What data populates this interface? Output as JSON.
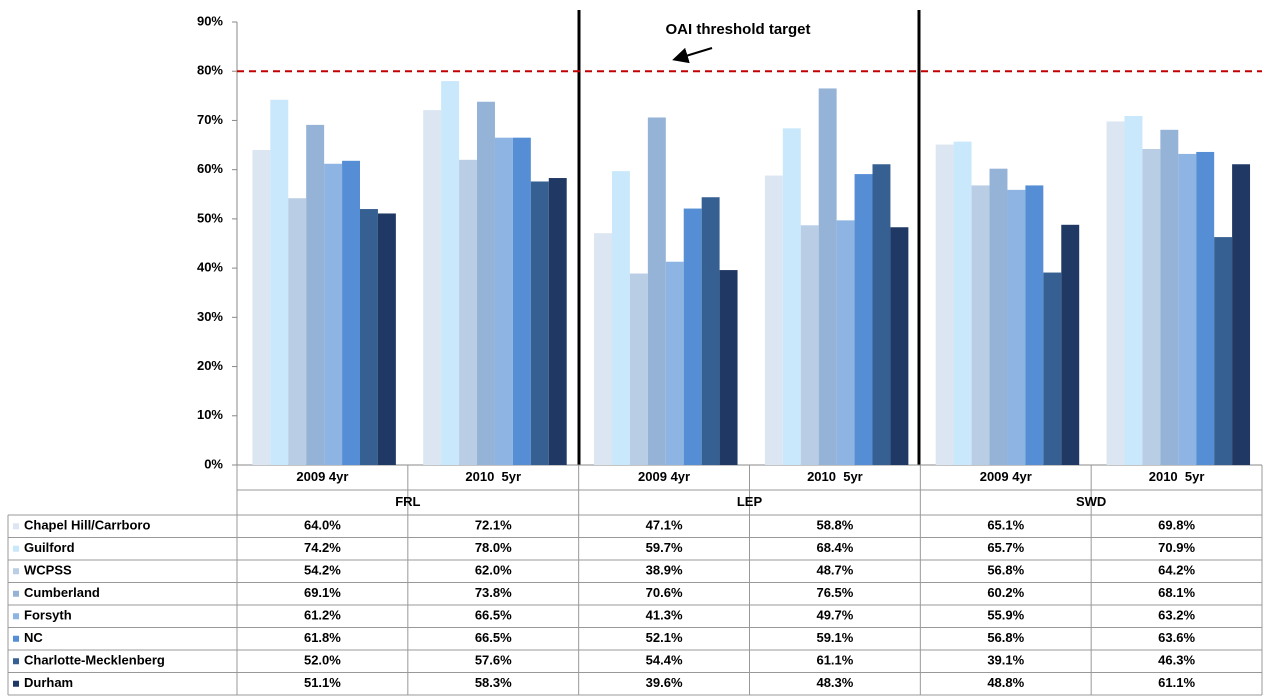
{
  "chart_data": {
    "type": "bar",
    "categories": [
      "2009 4yr",
      "2010  5yr",
      "2009 4yr",
      "2010  5yr",
      "2009 4yr",
      "2010  5yr"
    ],
    "groups": [
      "FRL",
      "LEP",
      "SWD"
    ],
    "annotation": "OAI threshold target",
    "threshold": 80,
    "threshold_color": "#c00000",
    "ylim": [
      0,
      90
    ],
    "yticks": [
      {
        "value": 0,
        "label": "0%"
      },
      {
        "value": 10,
        "label": "10%"
      },
      {
        "value": 20,
        "label": "20%"
      },
      {
        "value": 30,
        "label": "30%"
      },
      {
        "value": 40,
        "label": "40%"
      },
      {
        "value": 50,
        "label": "50%"
      },
      {
        "value": 60,
        "label": "60%"
      },
      {
        "value": 70,
        "label": "70%"
      },
      {
        "value": 80,
        "label": "80%"
      },
      {
        "value": 90,
        "label": "90%"
      }
    ],
    "series": [
      {
        "name": "Chapel Hill/Carrboro",
        "color": "#dce6f2",
        "values": [
          64.0,
          72.1,
          47.1,
          58.8,
          65.1,
          69.8
        ],
        "value_labels": [
          "64.0%",
          "72.1%",
          "47.1%",
          "58.8%",
          "65.1%",
          "69.8%"
        ]
      },
      {
        "name": "Guilford",
        "color": "#c9e8fb",
        "values": [
          74.2,
          78.0,
          59.7,
          68.4,
          65.7,
          70.9
        ],
        "value_labels": [
          "74.2%",
          "78.0%",
          "59.7%",
          "68.4%",
          "65.7%",
          "70.9%"
        ]
      },
      {
        "name": "WCPSS",
        "color": "#b9cde5",
        "values": [
          54.2,
          62.0,
          38.9,
          48.7,
          56.8,
          64.2
        ],
        "value_labels": [
          "54.2%",
          "62.0%",
          "38.9%",
          "48.7%",
          "56.8%",
          "64.2%"
        ]
      },
      {
        "name": "Cumberland",
        "color": "#95b3d7",
        "values": [
          69.1,
          73.8,
          70.6,
          76.5,
          60.2,
          68.1
        ],
        "value_labels": [
          "69.1%",
          "73.8%",
          "70.6%",
          "76.5%",
          "60.2%",
          "68.1%"
        ]
      },
      {
        "name": "Forsyth",
        "color": "#8db4e2",
        "values": [
          61.2,
          66.5,
          41.3,
          49.7,
          55.9,
          63.2
        ],
        "value_labels": [
          "61.2%",
          "66.5%",
          "41.3%",
          "49.7%",
          "55.9%",
          "63.2%"
        ]
      },
      {
        "name": "NC",
        "color": "#558ed5",
        "values": [
          61.8,
          66.5,
          52.1,
          59.1,
          56.8,
          63.6
        ],
        "value_labels": [
          "61.8%",
          "66.5%",
          "52.1%",
          "59.1%",
          "56.8%",
          "63.6%"
        ]
      },
      {
        "name": "Charlotte-Mecklenberg",
        "color": "#376092",
        "values": [
          52.0,
          57.6,
          54.4,
          61.1,
          39.1,
          46.3
        ],
        "value_labels": [
          "52.0%",
          "57.6%",
          "54.4%",
          "61.1%",
          "39.1%",
          "46.3%"
        ]
      },
      {
        "name": "Durham",
        "color": "#1f3864",
        "values": [
          51.1,
          58.3,
          39.6,
          48.3,
          48.8,
          61.1
        ],
        "value_labels": [
          "51.1%",
          "58.3%",
          "39.6%",
          "48.3%",
          "48.8%",
          "61.1%"
        ]
      }
    ]
  }
}
